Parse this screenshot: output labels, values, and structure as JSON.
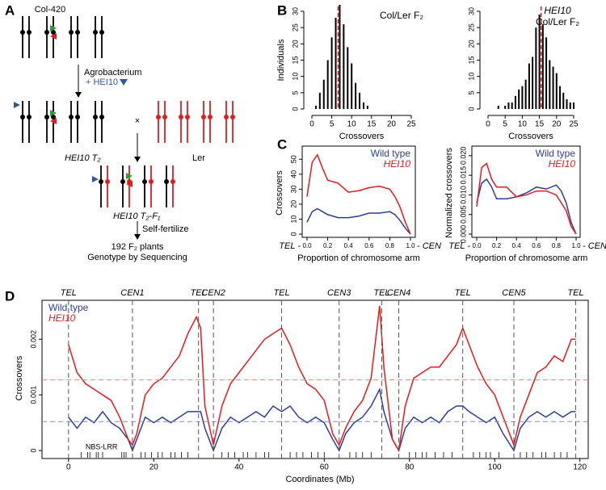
{
  "panel_labels": [
    "A",
    "B",
    "C",
    "D"
  ],
  "diagram_a": {
    "start_line": "Col-420",
    "agrobacterium": "Agrobacterium",
    "transgene": "+ HEI10",
    "t2_label": "HEI10 T₂",
    "ler_label": "Ler",
    "cross": "×",
    "f1_label": "HEI10 T₂-F₁",
    "selfing": "Self-fertilize",
    "plants": "192 F₂ plants",
    "sequencing": "Genotype by Sequencing"
  },
  "chart_data": [
    {
      "type": "bar",
      "title": "Col/Ler F₂",
      "xlabel": "Crossovers",
      "ylabel": "Individuals",
      "color": "#000000",
      "x": [
        1,
        2,
        3,
        4,
        5,
        6,
        7,
        8,
        9,
        10,
        11,
        12,
        13,
        14
      ],
      "values": [
        1,
        5,
        9,
        15,
        22,
        28,
        32,
        26,
        19,
        14,
        8,
        5,
        2,
        1
      ],
      "mean": {
        "value": 6.6,
        "color": "#e41a1c"
      },
      "xlim": [
        0,
        25
      ],
      "xticks": [
        0,
        5,
        10,
        15,
        20,
        25
      ],
      "ylim": [
        0,
        30
      ],
      "yticks": [
        0,
        5,
        10,
        15,
        20,
        25,
        30
      ]
    },
    {
      "type": "bar",
      "title": "HEI10",
      "subtitle": "Col/Ler F₂",
      "xlabel": "Crossovers",
      "color": "#000000",
      "x": [
        3,
        5,
        6,
        7,
        8,
        9,
        10,
        11,
        12,
        13,
        14,
        15,
        16,
        17,
        18,
        19,
        20,
        21,
        22,
        23,
        24,
        25
      ],
      "values": [
        1,
        1,
        2,
        2,
        4,
        6,
        7,
        9,
        14,
        16,
        25,
        29,
        26,
        22,
        15,
        13,
        11,
        7,
        5,
        3,
        2,
        2
      ],
      "mean": {
        "value": 15.5,
        "color": "#e41a1c"
      },
      "xlim": [
        0,
        25
      ],
      "xticks": [
        0,
        5,
        10,
        15,
        20,
        25
      ],
      "ylim": [
        0,
        30
      ],
      "yticks": [
        0,
        5,
        10,
        15,
        20,
        25,
        30
      ]
    },
    {
      "type": "line",
      "xlabel": "Proportion of chromosome arm",
      "ylabel": "Crossovers",
      "x_start_label": "TEL -",
      "x_end_label": "- CEN",
      "legend": "upper right",
      "x": [
        0,
        0.05,
        0.1,
        0.15,
        0.2,
        0.3,
        0.4,
        0.5,
        0.6,
        0.7,
        0.8,
        0.85,
        0.9,
        0.95,
        1.0
      ],
      "series": [
        {
          "name": "Wild type",
          "color": "#2c3e9c",
          "values": [
            8,
            15,
            17,
            15,
            13,
            11,
            11,
            12,
            14,
            14,
            15,
            13,
            9,
            4,
            0
          ]
        },
        {
          "name": "HEI10",
          "color": "#e41a1c",
          "values": [
            25,
            48,
            53,
            44,
            36,
            34,
            28,
            29,
            31,
            32,
            30,
            25,
            18,
            8,
            0
          ]
        }
      ],
      "xlim": [
        0,
        1
      ],
      "xticks": [
        {
          "value": 0,
          "label": "0.0"
        },
        0.2,
        0.4,
        0.6,
        0.8,
        {
          "value": 1,
          "label": "1.0"
        }
      ],
      "ylim": [
        0,
        55
      ],
      "yticks": [
        0,
        10,
        20,
        30,
        40,
        50
      ]
    },
    {
      "type": "line",
      "xlabel": "Proportion of chromosome arm",
      "ylabel": "Normalized crossovers",
      "x_start_label": "TEL -",
      "x_end_label": "- CEN",
      "legend": "upper right",
      "x": [
        0,
        0.05,
        0.1,
        0.15,
        0.2,
        0.3,
        0.4,
        0.5,
        0.6,
        0.7,
        0.8,
        0.85,
        0.9,
        0.95,
        1.0
      ],
      "series": [
        {
          "name": "Wild type",
          "color": "#2c3e9c",
          "values": [
            0.008,
            0.013,
            0.014,
            0.012,
            0.009,
            0.009,
            0.0095,
            0.0105,
            0.012,
            0.0115,
            0.0125,
            0.011,
            0.008,
            0.003,
            0
          ]
        },
        {
          "name": "HEI10",
          "color": "#e41a1c",
          "values": [
            0.007,
            0.017,
            0.018,
            0.014,
            0.012,
            0.012,
            0.0095,
            0.01,
            0.011,
            0.011,
            0.01,
            0.008,
            0.006,
            0.002,
            0
          ]
        }
      ],
      "xlim": [
        0,
        1
      ],
      "xticks": [
        {
          "value": 0,
          "label": "0.0"
        },
        0.2,
        0.4,
        0.6,
        0.8,
        {
          "value": 1,
          "label": "1.0"
        }
      ],
      "ylim": [
        0,
        0.021
      ],
      "yticks": [
        {
          "value": 0,
          "label": "0.000"
        },
        {
          "value": 0.005,
          "label": "0.005"
        },
        {
          "value": 0.01,
          "label": "0.010"
        },
        {
          "value": 0.015,
          "label": "0.015"
        },
        {
          "value": 0.02,
          "label": "0.020"
        }
      ]
    },
    {
      "type": "line",
      "xlabel": "Coordinates (Mb)",
      "ylabel": "Crossovers",
      "legend": "upper left",
      "x": [
        0,
        2,
        4,
        6,
        8,
        10,
        12,
        14,
        15,
        16,
        18,
        20,
        22,
        24,
        26,
        28,
        30,
        31,
        32,
        34,
        36,
        38,
        40,
        42,
        44,
        46,
        48,
        50,
        52,
        54,
        56,
        58,
        60,
        62,
        63.5,
        65,
        67,
        69,
        71,
        73,
        74,
        76,
        77.5,
        79,
        81,
        83,
        85,
        87,
        89,
        91,
        92.5,
        94,
        96,
        98,
        100,
        102,
        104.5,
        106,
        108,
        110,
        112,
        114,
        116,
        118,
        119
      ],
      "series": [
        {
          "name": "Wild type",
          "color": "#2c3e9c",
          "values": [
            0.0006,
            0.0004,
            0.0006,
            0.0005,
            0.0007,
            0.0005,
            0.0004,
            0.0002,
            0,
            0.0002,
            0.0006,
            0.0005,
            0.0006,
            0.0005,
            0.0006,
            0.0007,
            0.0007,
            0.0007,
            0.0004,
            0,
            0.0004,
            0.0006,
            0.0005,
            0.0006,
            0.0007,
            0.0006,
            0.0008,
            0.0007,
            0.0008,
            0.0006,
            0.0005,
            0.0006,
            0.0005,
            0.0002,
            0,
            0.0003,
            0.0005,
            0.0006,
            0.0008,
            0.0011,
            0.0007,
            0.0002,
            0,
            0.0004,
            0.0006,
            0.0005,
            0.0006,
            0.0005,
            0.0007,
            0.0008,
            0.0008,
            0.0007,
            0.0006,
            0.0005,
            0.0006,
            0.0003,
            0,
            0.0004,
            0.0006,
            0.0007,
            0.0006,
            0.0007,
            0.0006,
            0.0007,
            0.0007
          ]
        },
        {
          "name": "HEI10",
          "color": "#e41a1c",
          "values": [
            0.0019,
            0.0014,
            0.0012,
            0.0011,
            0.001,
            0.0009,
            0.0006,
            0.0002,
            0.0001,
            0.0003,
            0.001,
            0.0012,
            0.0013,
            0.0015,
            0.0017,
            0.0021,
            0.0024,
            0.0022,
            0.0008,
            0.0001,
            0.0008,
            0.0012,
            0.0014,
            0.0016,
            0.0018,
            0.002,
            0.0021,
            0.0022,
            0.0019,
            0.0015,
            0.0012,
            0.0011,
            0.0009,
            0.0003,
            0.0001,
            0.0004,
            0.0007,
            0.0009,
            0.0013,
            0.0026,
            0.0015,
            0.0002,
            0,
            0.0008,
            0.0013,
            0.0014,
            0.0015,
            0.0015,
            0.0017,
            0.0019,
            0.0022,
            0.0019,
            0.0015,
            0.0012,
            0.001,
            0.0006,
            0.0001,
            0.0006,
            0.001,
            0.0014,
            0.0015,
            0.0017,
            0.0016,
            0.002,
            0.002
          ]
        }
      ],
      "markers": [
        {
          "x": 0,
          "label": "TEL"
        },
        {
          "x": 15,
          "label": "CEN1"
        },
        {
          "x": 30.5,
          "label": "TEL"
        },
        {
          "x": 34,
          "label": "CEN2"
        },
        {
          "x": 50,
          "label": "TEL"
        },
        {
          "x": 63.5,
          "label": "CEN3"
        },
        {
          "x": 73.5,
          "label": "TEL"
        },
        {
          "x": 77.5,
          "label": "CEN4"
        },
        {
          "x": 92.5,
          "label": "TEL"
        },
        {
          "x": 104.5,
          "label": "CEN5"
        },
        {
          "x": 119,
          "label": "TEL"
        }
      ],
      "mean_lines": [
        {
          "value": 0.00127,
          "color": "#f08080"
        },
        {
          "value": 0.00052,
          "color": "#7b8fd0"
        }
      ],
      "rug": {
        "label": "NBS-LRR",
        "x": [
          3,
          4.5,
          5,
          6.5,
          7,
          8,
          12.5,
          13,
          13.5,
          17,
          18,
          19.5,
          21,
          22,
          24,
          25,
          26.5,
          28,
          36,
          37.5,
          39,
          41,
          42,
          44,
          46,
          47,
          52,
          53.5,
          55,
          57,
          58.5,
          60,
          66,
          67.5,
          69,
          71,
          80,
          81.5,
          83,
          84,
          86,
          88,
          90,
          95,
          96.5,
          98,
          99,
          101,
          106,
          107.5,
          109,
          111,
          112,
          114,
          115.5,
          117
        ]
      },
      "xlim": [
        -3,
        121
      ],
      "xticks": [
        0,
        20,
        40,
        60,
        80,
        100,
        120
      ],
      "ylim": [
        -0.0001,
        0.0027
      ],
      "yticks": [
        0,
        0.001,
        0.002
      ]
    }
  ]
}
